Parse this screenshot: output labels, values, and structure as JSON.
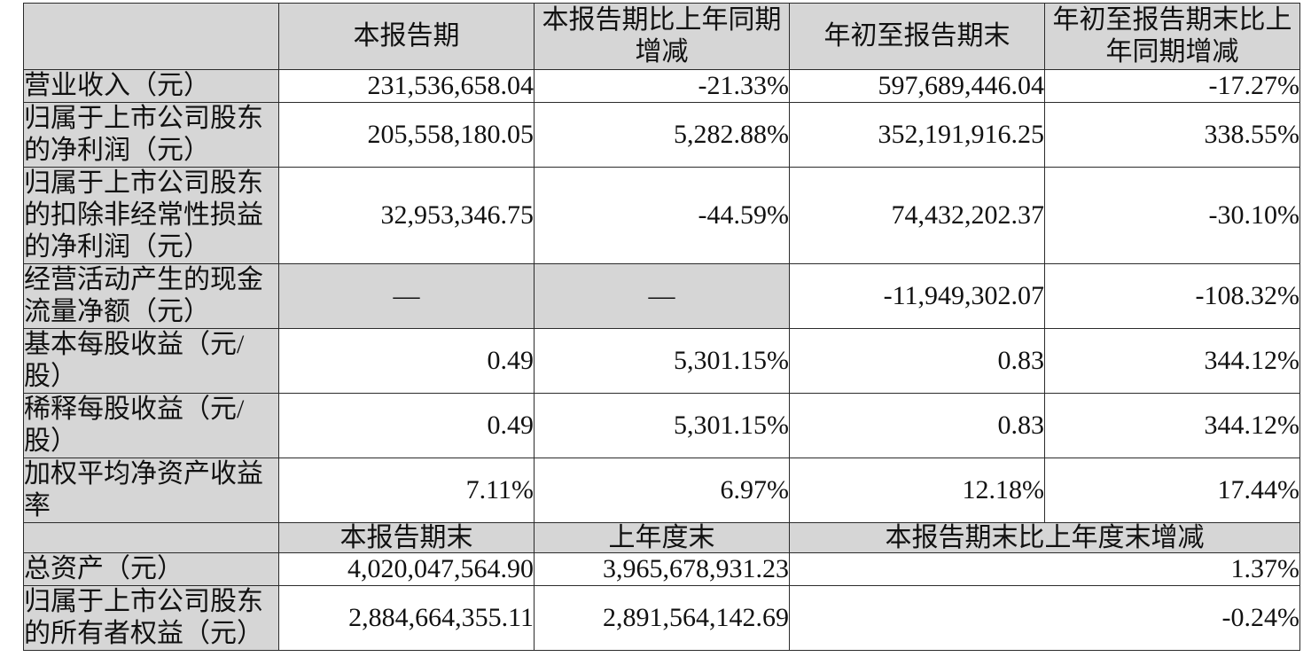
{
  "table": {
    "title": "key-financial-indicators",
    "colors": {
      "header_bg": "#d6d6d6",
      "border": "#2b2b2b",
      "text": "#111111"
    },
    "header1": {
      "col0": "",
      "col1": "本报告期",
      "col2": "本报告期比上年同期增减",
      "col3": "年初至报告期末",
      "col4": "年初至报告期末比上年同期增减"
    },
    "rows": [
      {
        "label": "营业收入（元）",
        "c1": "231,536,658.04",
        "c2": "-21.33%",
        "c3": "597,689,446.04",
        "c4": "-17.27%"
      },
      {
        "label": "归属于上市公司股东的净利润（元）",
        "c1": "205,558,180.05",
        "c2": "5,282.88%",
        "c3": "352,191,916.25",
        "c4": "338.55%"
      },
      {
        "label": "归属于上市公司股东的扣除非经常性损益的净利润（元）",
        "c1": "32,953,346.75",
        "c2": "-44.59%",
        "c3": "74,432,202.37",
        "c4": "-30.10%"
      },
      {
        "label": "经营活动产生的现金流量净额（元）",
        "c1": "—",
        "c2": "—",
        "c3": "-11,949,302.07",
        "c4": "-108.32%"
      },
      {
        "label": "基本每股收益（元/股）",
        "c1": "0.49",
        "c2": "5,301.15%",
        "c3": "0.83",
        "c4": "344.12%"
      },
      {
        "label": "稀释每股收益（元/股）",
        "c1": "0.49",
        "c2": "5,301.15%",
        "c3": "0.83",
        "c4": "344.12%"
      },
      {
        "label": "加权平均净资产收益率",
        "c1": "7.11%",
        "c2": "6.97%",
        "c3": "12.18%",
        "c4": "17.44%"
      }
    ],
    "header2": {
      "col0": "",
      "col1": "本报告期末",
      "col2": "上年度末",
      "col34": "本报告期末比上年度末增减"
    },
    "rows2": [
      {
        "label": "总资产（元）",
        "c1": "4,020,047,564.90",
        "c2": "3,965,678,931.23",
        "c34": "1.37%"
      },
      {
        "label": "归属于上市公司股东的所有者权益（元）",
        "c1": "2,884,664,355.11",
        "c2": "2,891,564,142.69",
        "c34": "-0.24%"
      }
    ]
  }
}
